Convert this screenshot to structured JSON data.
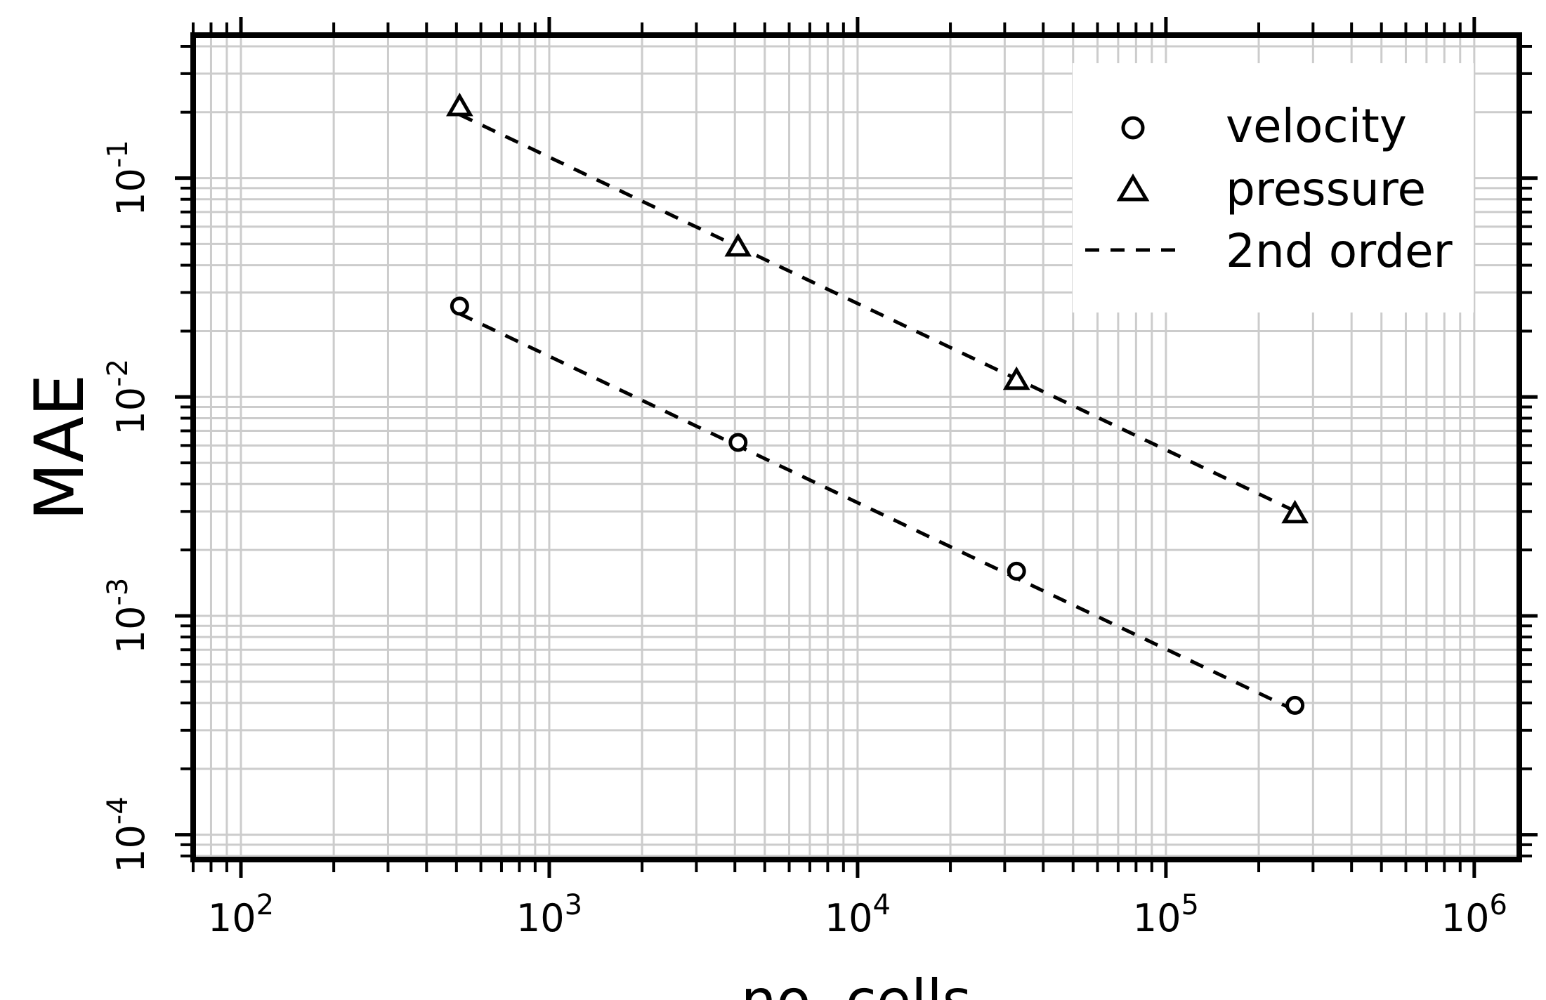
{
  "chart_data": {
    "type": "scatter",
    "title": "",
    "xlabel": "no. cells",
    "ylabel": "MAE",
    "x_scale": "log",
    "y_scale": "log",
    "xlim": [
      70,
      1400000
    ],
    "ylim": [
      7.7e-05,
      0.45
    ],
    "x_ticks": [
      {
        "base": "10",
        "exp": "2",
        "value": 100
      },
      {
        "base": "10",
        "exp": "3",
        "value": 1000
      },
      {
        "base": "10",
        "exp": "4",
        "value": 10000
      },
      {
        "base": "10",
        "exp": "5",
        "value": 100000
      },
      {
        "base": "10",
        "exp": "6",
        "value": 1000000
      }
    ],
    "y_ticks": [
      {
        "base": "10",
        "exp": "-4",
        "value": 0.0001
      },
      {
        "base": "10",
        "exp": "-3",
        "value": 0.001
      },
      {
        "base": "10",
        "exp": "-2",
        "value": 0.01
      },
      {
        "base": "10",
        "exp": "-1",
        "value": 0.1
      }
    ],
    "grid": true,
    "legend_position": "top-right",
    "series": [
      {
        "name": "velocity",
        "marker": "circle",
        "x": [
          512,
          4096,
          32768,
          262144
        ],
        "y": [
          0.026,
          0.0062,
          0.0016,
          0.00039
        ]
      },
      {
        "name": "pressure",
        "marker": "triangle",
        "x": [
          512,
          4096,
          32768,
          262144
        ],
        "y": [
          0.21,
          0.048,
          0.0118,
          0.0029
        ]
      }
    ],
    "reference_lines": [
      {
        "name": "2nd order",
        "style": "dashed",
        "x": [
          512,
          262144
        ],
        "y": [
          0.024,
          0.00037
        ]
      },
      {
        "name": "2nd order",
        "style": "dashed",
        "x": [
          512,
          262144
        ],
        "y": [
          0.195,
          0.00301
        ]
      }
    ],
    "legend": [
      {
        "label": "velocity",
        "symbol": "circle"
      },
      {
        "label": "pressure",
        "symbol": "triangle"
      },
      {
        "label": "2nd order",
        "symbol": "dashed-line"
      }
    ]
  }
}
